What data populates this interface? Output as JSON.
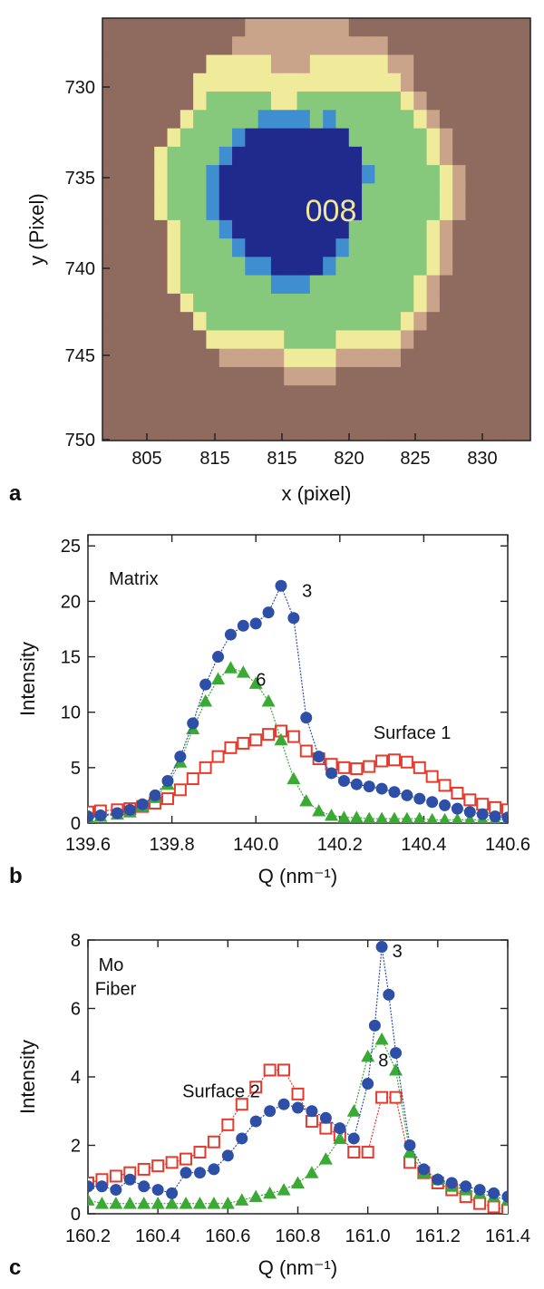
{
  "chart_data": [
    {
      "type": "heatmap",
      "panel_label": "a",
      "xlabel": "x (pixel)",
      "ylabel": "y (Pixel)",
      "x_tick_labels": [
        "805",
        "815",
        "815",
        "820",
        "825",
        "830"
      ],
      "y_tick_labels": [
        "730",
        "735",
        "740",
        "745",
        "750"
      ],
      "annotation": "008",
      "grid_x_range": [
        800,
        833
      ],
      "grid_y_range": [
        727,
        750
      ],
      "levels": [
        "000000000001111111100000000000000",
        "000000000011111111111100000000000",
        "000000002222211122222211000000000",
        "000000022222222222222221000000000",
        "000000023333322333333332100000000",
        "000000233333444434333333210000000",
        "000002333345555555533333321000000",
        "000023333455555555553333321000000",
        "000023334555555555554333332100000",
        "000023334555555555553333332100000",
        "000023334555555555553333332100000",
        "000002333455555555533333321000000",
        "000002333345555555433333321000000",
        "000002333334455554333333321000000",
        "000002333333344433333333210000000",
        "000000233333333333333333210000000",
        "000000023333333333333332100000000",
        "000000002222223333222221000000000",
        "000000000111112222111110000000000",
        "000000000000001111000000000000000",
        "000000000000000000000000000000000",
        "000000000000000000000000000000000",
        "000000000000000000000000000000000"
      ],
      "level_colors": [
        "#8f6a5e",
        "#c9a48a",
        "#f0eb9a",
        "#86c97c",
        "#3f8fd0",
        "#1f2a8c"
      ],
      "edge_color": "#b9a59e"
    },
    {
      "type": "line",
      "panel_label": "b",
      "xlabel": "Q (nm⁻¹)",
      "ylabel": "Intensity",
      "xlim": [
        139.6,
        140.6
      ],
      "ylim": [
        0,
        26
      ],
      "x_ticks": [
        139.6,
        139.8,
        140.0,
        140.2,
        140.4,
        140.6
      ],
      "x_tick_labels": [
        "139.6",
        "139.8",
        "140.0",
        "140.2",
        "140.4",
        "140.6"
      ],
      "y_ticks": [
        0,
        5,
        10,
        15,
        20,
        25
      ],
      "y_tick_labels": [
        "0",
        "5",
        "10",
        "15",
        "20",
        "25"
      ],
      "annotations": [
        {
          "text": "Matrix",
          "x": 139.65,
          "y": 21.5
        },
        {
          "text": "3",
          "x": 140.11,
          "y": 20.4
        },
        {
          "text": "6",
          "x": 140.0,
          "y": 12.4
        },
        {
          "text": "Surface 1",
          "x": 140.28,
          "y": 7.6
        }
      ],
      "series": [
        {
          "marker": "circle",
          "color": "#2e4fa8",
          "x": [
            139.6,
            139.63,
            139.67,
            139.7,
            139.73,
            139.76,
            139.79,
            139.82,
            139.85,
            139.88,
            139.91,
            139.94,
            139.97,
            140.0,
            140.03,
            140.06,
            140.09,
            140.12,
            140.15,
            140.18,
            140.21,
            140.24,
            140.27,
            140.3,
            140.33,
            140.36,
            140.39,
            140.42,
            140.45,
            140.48,
            140.51,
            140.54,
            140.57,
            140.6
          ],
          "y": [
            0.6,
            0.7,
            0.9,
            1.2,
            1.7,
            2.5,
            3.8,
            6.0,
            9.0,
            12.5,
            15.0,
            17.0,
            17.8,
            18.0,
            19.0,
            21.4,
            18.5,
            9.5,
            6.0,
            4.5,
            3.8,
            3.5,
            3.3,
            3.1,
            2.8,
            2.5,
            2.2,
            1.9,
            1.6,
            1.3,
            1.0,
            0.8,
            0.6,
            0.5
          ]
        },
        {
          "marker": "triangle",
          "color": "#3aaa35",
          "x": [
            139.6,
            139.63,
            139.67,
            139.7,
            139.73,
            139.76,
            139.79,
            139.82,
            139.85,
            139.88,
            139.91,
            139.94,
            139.97,
            140.0,
            140.03,
            140.06,
            140.09,
            140.12,
            140.15,
            140.18,
            140.21,
            140.24,
            140.27,
            140.3,
            140.33,
            140.36,
            140.39,
            140.42,
            140.45,
            140.48,
            140.51,
            140.54,
            140.57,
            140.6
          ],
          "y": [
            0.5,
            0.6,
            0.8,
            1.0,
            1.5,
            2.3,
            3.5,
            5.5,
            8.5,
            11.0,
            13.0,
            14.0,
            13.6,
            12.6,
            11.0,
            7.5,
            4.0,
            2.0,
            1.1,
            0.7,
            0.5,
            0.5,
            0.4,
            0.4,
            0.4,
            0.4,
            0.4,
            0.3,
            0.3,
            0.3,
            0.3,
            0.3,
            0.3,
            0.3
          ]
        },
        {
          "marker": "open-square",
          "color": "#e33b2e",
          "x": [
            139.6,
            139.63,
            139.67,
            139.7,
            139.73,
            139.76,
            139.79,
            139.82,
            139.85,
            139.88,
            139.91,
            139.94,
            139.97,
            140.0,
            140.03,
            140.06,
            140.09,
            140.12,
            140.15,
            140.18,
            140.21,
            140.24,
            140.27,
            140.3,
            140.33,
            140.36,
            140.39,
            140.42,
            140.45,
            140.48,
            140.51,
            140.54,
            140.57,
            140.6
          ],
          "y": [
            1.0,
            1.1,
            1.2,
            1.3,
            1.5,
            1.8,
            2.2,
            3.0,
            4.0,
            5.0,
            6.0,
            6.8,
            7.2,
            7.5,
            8.0,
            8.3,
            7.8,
            6.5,
            5.8,
            5.3,
            5.0,
            4.9,
            5.1,
            5.6,
            5.7,
            5.5,
            5.0,
            4.2,
            3.4,
            2.7,
            2.1,
            1.7,
            1.4,
            1.2
          ]
        }
      ]
    },
    {
      "type": "line",
      "panel_label": "c",
      "xlabel": "Q (nm⁻¹)",
      "ylabel": "Intensity",
      "xlim": [
        160.2,
        161.4
      ],
      "ylim": [
        0,
        8
      ],
      "x_ticks": [
        160.2,
        160.4,
        160.6,
        160.8,
        161.0,
        161.2,
        161.4
      ],
      "x_tick_labels": [
        "160.2",
        "160.4",
        "160.6",
        "160.8",
        "161.0",
        "161.2",
        "161.4"
      ],
      "y_ticks": [
        0,
        2,
        4,
        6,
        8
      ],
      "y_tick_labels": [
        "0",
        "2",
        "4",
        "6",
        "8"
      ],
      "annotations": [
        {
          "text": "Mo",
          "x": 160.23,
          "y": 7.1
        },
        {
          "text": "Fiber",
          "x": 160.22,
          "y": 6.4
        },
        {
          "text": "3",
          "x": 161.07,
          "y": 7.5
        },
        {
          "text": "8",
          "x": 161.03,
          "y": 4.3
        },
        {
          "text": "Surface 2",
          "x": 160.47,
          "y": 3.4
        }
      ],
      "series": [
        {
          "marker": "circle",
          "color": "#2e4fa8",
          "x": [
            160.2,
            160.24,
            160.28,
            160.32,
            160.36,
            160.4,
            160.44,
            160.48,
            160.52,
            160.56,
            160.6,
            160.64,
            160.68,
            160.72,
            160.76,
            160.8,
            160.84,
            160.88,
            160.92,
            160.96,
            161.0,
            161.02,
            161.04,
            161.06,
            161.08,
            161.12,
            161.16,
            161.2,
            161.24,
            161.28,
            161.32,
            161.36,
            161.4
          ],
          "y": [
            0.8,
            0.8,
            0.7,
            1.0,
            0.8,
            0.7,
            0.6,
            1.2,
            1.2,
            1.3,
            1.7,
            2.2,
            2.7,
            3.0,
            3.2,
            3.1,
            3.0,
            2.8,
            2.5,
            2.2,
            3.8,
            5.5,
            7.8,
            6.4,
            4.7,
            2.0,
            1.3,
            1.0,
            0.9,
            0.8,
            0.7,
            0.6,
            0.5
          ]
        },
        {
          "marker": "triangle",
          "color": "#3aaa35",
          "x": [
            160.2,
            160.24,
            160.28,
            160.32,
            160.36,
            160.4,
            160.44,
            160.48,
            160.52,
            160.56,
            160.6,
            160.64,
            160.68,
            160.72,
            160.76,
            160.8,
            160.84,
            160.88,
            160.92,
            160.96,
            161.0,
            161.04,
            161.08,
            161.12,
            161.16,
            161.2,
            161.24,
            161.28,
            161.32,
            161.36,
            161.4
          ],
          "y": [
            0.4,
            0.3,
            0.3,
            0.3,
            0.3,
            0.3,
            0.3,
            0.3,
            0.3,
            0.3,
            0.3,
            0.4,
            0.5,
            0.6,
            0.7,
            0.9,
            1.2,
            1.6,
            2.2,
            3.0,
            4.6,
            5.1,
            4.2,
            1.8,
            1.2,
            1.0,
            0.8,
            0.7,
            0.6,
            0.5,
            0.4
          ]
        },
        {
          "marker": "open-square",
          "color": "#e33b2e",
          "x": [
            160.2,
            160.24,
            160.28,
            160.32,
            160.36,
            160.4,
            160.44,
            160.48,
            160.52,
            160.56,
            160.6,
            160.64,
            160.68,
            160.72,
            160.76,
            160.8,
            160.84,
            160.88,
            160.92,
            160.96,
            161.0,
            161.04,
            161.08,
            161.12,
            161.16,
            161.2,
            161.24,
            161.28,
            161.32,
            161.36,
            161.4
          ],
          "y": [
            0.9,
            1.0,
            1.1,
            1.2,
            1.3,
            1.4,
            1.5,
            1.6,
            1.8,
            2.1,
            2.6,
            3.2,
            3.7,
            4.2,
            4.2,
            3.5,
            2.7,
            2.5,
            2.3,
            1.8,
            1.8,
            3.4,
            3.4,
            1.5,
            1.2,
            0.9,
            0.7,
            0.5,
            0.3,
            0.2,
            0.1
          ]
        }
      ]
    }
  ]
}
